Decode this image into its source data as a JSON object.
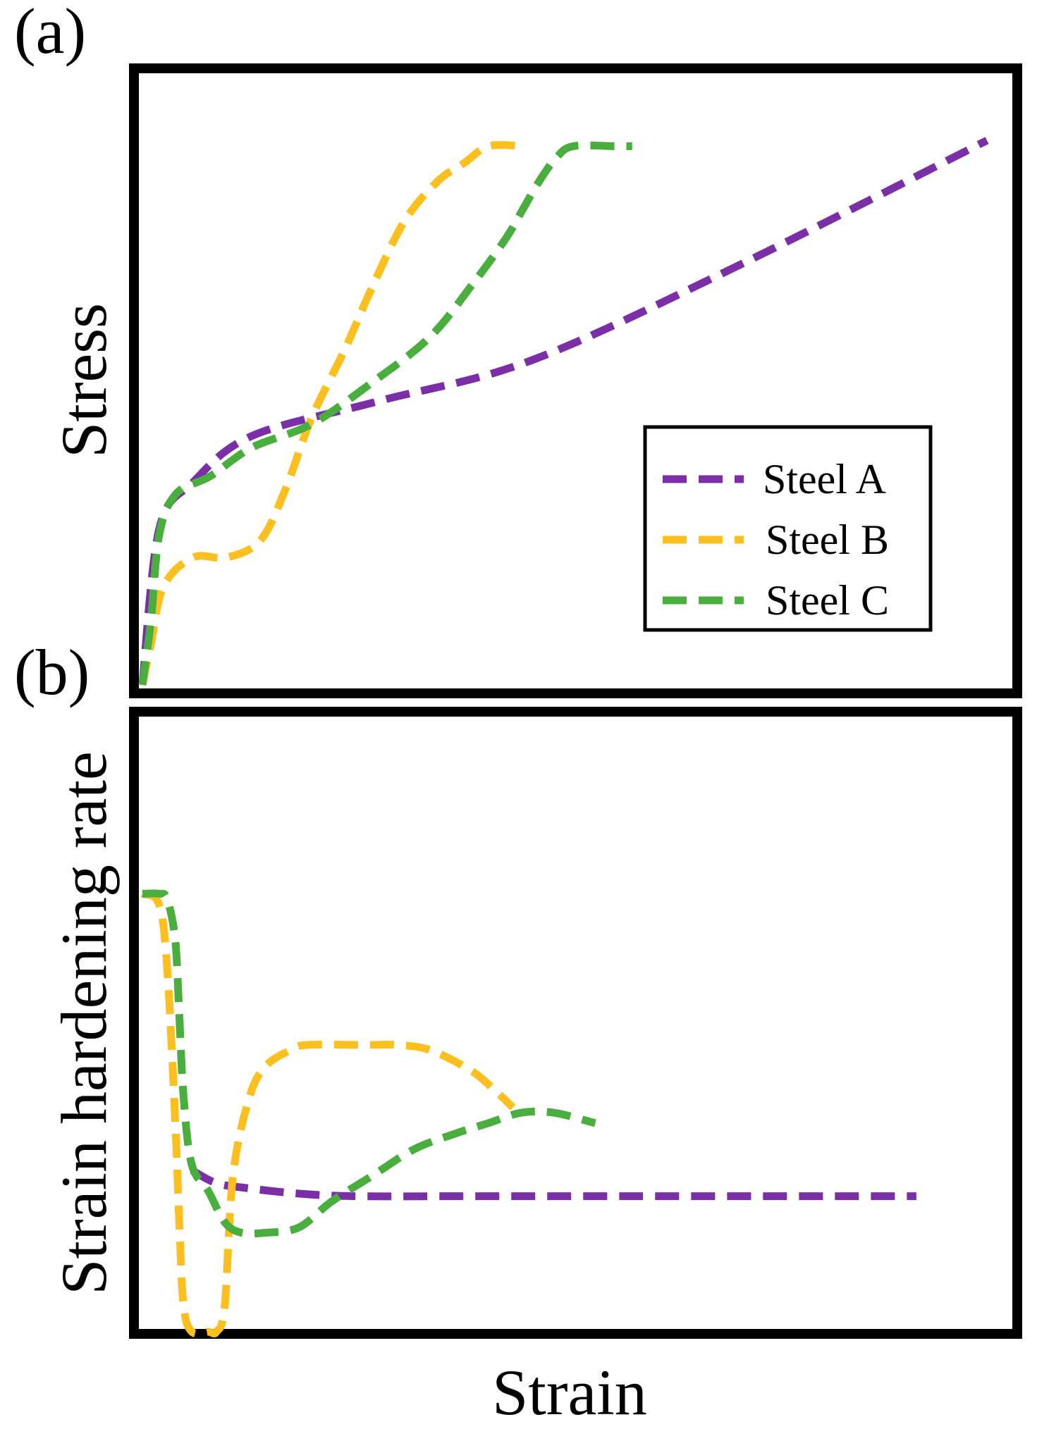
{
  "colors": {
    "steel_a": "#7B2FA6",
    "steel_b": "#FBBF1F",
    "steel_c": "#4AAE3E"
  },
  "chart_data": [
    {
      "type": "line",
      "panel_label": "(a)",
      "title": "",
      "xlabel": "Strain",
      "ylabel": "Stress",
      "xlim": [
        0,
        100
      ],
      "ylim": [
        0,
        100
      ],
      "grid": false,
      "ticks": "none",
      "legend": {
        "placement": "lower-right",
        "entries": [
          "Steel A",
          "Steel B",
          "Steel C"
        ]
      },
      "series": [
        {
          "name": "Steel A",
          "color_key": "steel_a",
          "x": [
            0,
            2,
            6,
            13,
            28,
            46,
            70,
            100
          ],
          "y": [
            0,
            27,
            35,
            43,
            49,
            56,
            72,
            94
          ]
        },
        {
          "name": "Steel B",
          "color_key": "steel_b",
          "x": [
            0,
            1,
            2.5,
            6,
            10,
            14,
            17,
            20,
            24,
            27,
            31,
            35,
            38,
            41,
            45
          ],
          "y": [
            0,
            7,
            17,
            22,
            22,
            25,
            34,
            46,
            58,
            68,
            80,
            87,
            90,
            93,
            93
          ]
        },
        {
          "name": "Steel C",
          "color_key": "steel_c",
          "x": [
            0,
            1,
            2,
            4,
            8,
            13,
            20,
            27,
            34,
            39,
            43,
            45,
            47,
            49,
            51,
            56,
            58
          ],
          "y": [
            0,
            11,
            26,
            33,
            36,
            41,
            45,
            52,
            60,
            69,
            77,
            82,
            87,
            91,
            93,
            93,
            93
          ]
        }
      ]
    },
    {
      "type": "line",
      "panel_label": "(b)",
      "title": "",
      "xlabel": "Strain",
      "ylabel": "Strain hardening rate",
      "xlim": [
        0,
        100
      ],
      "ylim": [
        0,
        100
      ],
      "grid": false,
      "ticks": "none",
      "legend": null,
      "series": [
        {
          "name": "Steel A",
          "color_key": "steel_a",
          "x": [
            6,
            9,
            13,
            19,
            26,
            40,
            60,
            80,
            94
          ],
          "y": [
            31,
            28.5,
            27.5,
            26.5,
            26,
            26,
            26,
            26,
            26
          ]
        },
        {
          "name": "Steel B",
          "color_key": "steel_b",
          "x": [
            0,
            2,
            3,
            4,
            4.5,
            5,
            6,
            8,
            9,
            10,
            11,
            13,
            15,
            18,
            20,
            27,
            31,
            35,
            40,
            43,
            45
          ],
          "y": [
            84,
            82,
            70,
            40,
            20,
            5,
            0,
            0,
            0,
            5,
            30,
            45,
            51,
            54,
            55,
            55,
            55,
            54,
            50,
            46,
            43
          ]
        },
        {
          "name": "Steel C",
          "color_key": "steel_c",
          "x": [
            0,
            2,
            3,
            4,
            4.5,
            5,
            6,
            8,
            10,
            12,
            15,
            19,
            23,
            28,
            33,
            38,
            42,
            46,
            50,
            55
          ],
          "y": [
            84,
            84,
            83,
            75,
            60,
            45,
            32,
            27,
            21,
            19,
            19,
            20,
            25,
            30,
            35,
            38,
            40,
            42,
            42,
            40
          ]
        }
      ]
    }
  ]
}
